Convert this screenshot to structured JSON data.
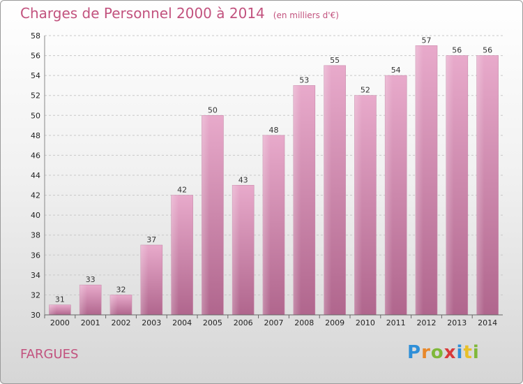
{
  "chart_data": {
    "type": "bar",
    "title": "Charges de Personnel 2000 à 2014",
    "subtitle": "(en milliers d'€)",
    "categories": [
      "2000",
      "2001",
      "2002",
      "2003",
      "2004",
      "2005",
      "2006",
      "2007",
      "2008",
      "2009",
      "2010",
      "2011",
      "2012",
      "2013",
      "2014"
    ],
    "values": [
      31,
      33,
      32,
      37,
      42,
      50,
      43,
      48,
      53,
      55,
      52,
      54,
      57,
      56,
      56
    ],
    "ylim": [
      30,
      58
    ],
    "yticks": [
      30,
      32,
      34,
      36,
      38,
      40,
      42,
      44,
      46,
      48,
      50,
      52,
      54,
      56,
      58
    ],
    "grid": true,
    "bar_color": "#d98fb4",
    "label_color": "#c2527e"
  },
  "location": "FARGUES",
  "logo": {
    "p": "P",
    "r": "r",
    "o": "o",
    "x": "x",
    "i1": "i",
    "t": "t",
    "i2": "i"
  }
}
